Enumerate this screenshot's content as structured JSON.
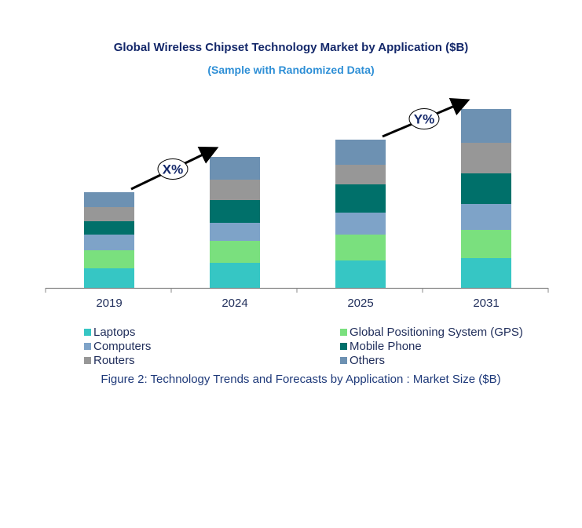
{
  "chart_data": {
    "type": "bar",
    "stacked": true,
    "title": "Global Wireless Chipset Technology Market by Application ($B)",
    "subtitle": "(Sample with Randomized Data)",
    "caption": "Figure 2: Technology  Trends  and Forecasts by Application : Market Size ($B)",
    "categories": [
      "2019",
      "2024",
      "2025",
      "2031"
    ],
    "yaxis_shown": false,
    "grid": false,
    "legend_placement": "bottom",
    "series": [
      {
        "name": "Laptops",
        "color": "#36c6c4",
        "values": [
          25,
          32,
          35,
          38
        ]
      },
      {
        "name": "Global Positioning System (GPS)",
        "color": "#7ae07e",
        "values": [
          23,
          28,
          33,
          36
        ]
      },
      {
        "name": "Computers",
        "color": "#7ea3c8",
        "values": [
          20,
          23,
          28,
          33
        ]
      },
      {
        "name": "Mobile Phone",
        "color": "#00706a",
        "values": [
          17,
          29,
          36,
          39
        ]
      },
      {
        "name": "Routers",
        "color": "#979797",
        "values": [
          18,
          26,
          25,
          39
        ]
      },
      {
        "name": "Others",
        "color": "#6d91b2",
        "values": [
          19,
          29,
          32,
          43
        ]
      }
    ],
    "legend_order": [
      0,
      1,
      2,
      3,
      4,
      5
    ],
    "annotations": [
      {
        "label": "X%",
        "from": "2019",
        "to": "2024"
      },
      {
        "label": "Y%",
        "from": "2025",
        "to": "2031"
      }
    ]
  }
}
